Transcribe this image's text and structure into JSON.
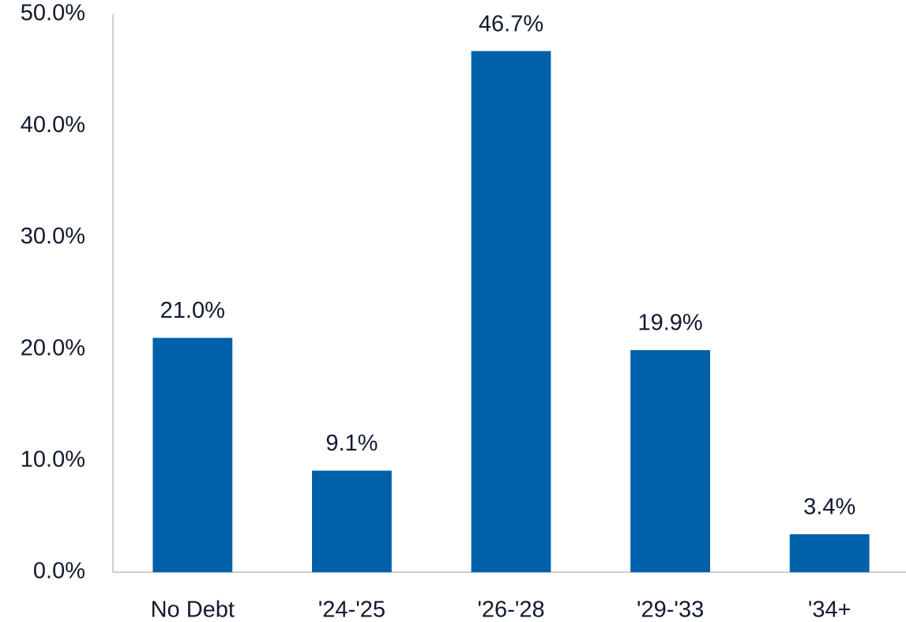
{
  "chart_data": {
    "type": "bar",
    "categories": [
      "No Debt",
      "'24-'25",
      "'26-'28",
      "'29-'33",
      "'34+"
    ],
    "values": [
      21.0,
      9.1,
      46.7,
      19.9,
      3.4
    ],
    "value_labels": [
      "21.0%",
      "9.1%",
      "46.7%",
      "19.9%",
      "3.4%"
    ],
    "color": "#0061aa",
    "ylim": [
      0,
      50
    ],
    "yticks": [
      {
        "value": 0,
        "label": "0.0%"
      },
      {
        "value": 10,
        "label": "10.0%"
      },
      {
        "value": 20,
        "label": "20.0%"
      },
      {
        "value": 30,
        "label": "30.0%"
      },
      {
        "value": 40,
        "label": "40.0%"
      },
      {
        "value": 50,
        "label": "50.0%"
      }
    ],
    "grid": false
  }
}
